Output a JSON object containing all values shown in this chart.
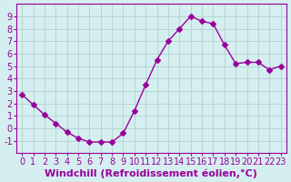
{
  "x": [
    0,
    1,
    2,
    3,
    4,
    5,
    6,
    7,
    8,
    9,
    10,
    11,
    12,
    13,
    14,
    15,
    16,
    17,
    18,
    19,
    20,
    21,
    22,
    23
  ],
  "y": [
    2.7,
    1.9,
    1.1,
    0.4,
    -0.3,
    -0.8,
    -1.1,
    -1.1,
    -1.1,
    -0.4,
    1.4,
    3.5,
    5.5,
    7.0,
    8.0,
    9.0,
    8.6,
    8.4,
    6.7,
    5.2,
    5.3,
    5.3,
    4.7,
    5.0
  ],
  "line_color": "#990099",
  "marker": "D",
  "markersize": 3,
  "linewidth": 1.0,
  "bg_color": "#d5eef0",
  "grid_color": "#aacccc",
  "xlabel": "Windchill (Refroidissement éolien,°C)",
  "xlabel_color": "#990099",
  "xlabel_fontsize": 8,
  "tick_color": "#990099",
  "tick_fontsize": 7,
  "ylim": [
    -2,
    10
  ],
  "xlim": [
    -0.5,
    23.5
  ],
  "yticks": [
    -1,
    0,
    1,
    2,
    3,
    4,
    5,
    6,
    7,
    8,
    9
  ],
  "xticks": [
    0,
    1,
    2,
    3,
    4,
    5,
    6,
    7,
    8,
    9,
    10,
    11,
    12,
    13,
    14,
    15,
    16,
    17,
    18,
    19,
    20,
    21,
    22,
    23
  ]
}
